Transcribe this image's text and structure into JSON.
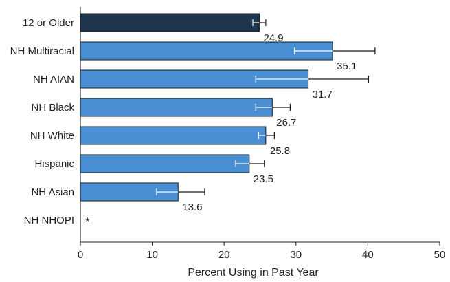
{
  "chart_data": {
    "type": "bar",
    "orientation": "horizontal",
    "title": "",
    "xlabel": "Percent Using in Past Year",
    "ylabel": "",
    "xlim": [
      0,
      50
    ],
    "xticks": [
      0,
      10,
      20,
      30,
      40,
      50
    ],
    "grid": false,
    "legend": "none",
    "categories": [
      "12 or Older",
      "NH Multiracial",
      "NH AIAN",
      "NH Black",
      "NH White",
      "Hispanic",
      "NH Asian",
      "NH NHOPI"
    ],
    "values": [
      24.9,
      35.1,
      31.7,
      26.7,
      25.8,
      23.5,
      13.6,
      null
    ],
    "value_labels": [
      "24.9",
      "35.1",
      "31.7",
      "26.7",
      "25.8",
      "23.5",
      "13.6",
      "*"
    ],
    "error_low": [
      24.0,
      29.8,
      24.4,
      24.4,
      24.8,
      21.6,
      10.6,
      null
    ],
    "error_high": [
      25.8,
      41.0,
      40.1,
      29.2,
      27.0,
      25.6,
      17.3,
      null
    ],
    "bar_colors": [
      "#1f364e",
      "#4a8fd4",
      "#4a8fd4",
      "#4a8fd4",
      "#4a8fd4",
      "#4a8fd4",
      "#4a8fd4",
      "#4a8fd4"
    ],
    "bar_stroke": "#1a1a1a"
  }
}
